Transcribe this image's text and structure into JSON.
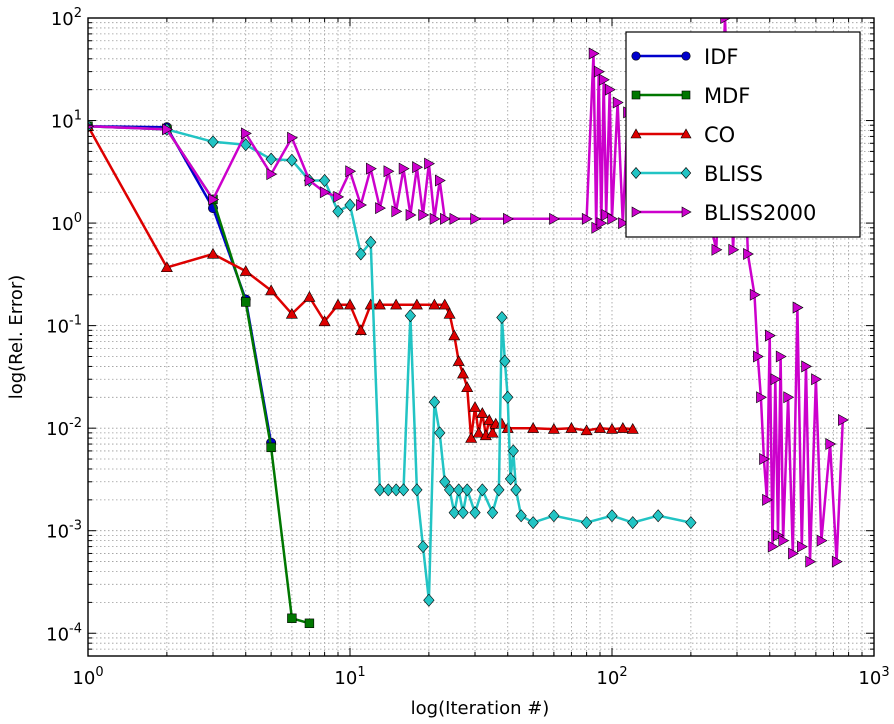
{
  "chart_data": {
    "type": "line",
    "xscale": "log",
    "yscale": "log",
    "xlim": [
      1,
      1000
    ],
    "ylim": [
      6e-05,
      100
    ],
    "xlabel": "log(Iteration #)",
    "ylabel": "log(Rel. Error)",
    "grid": true,
    "legend_position": "top-right",
    "x_ticks": [
      {
        "value": 1,
        "base": "10",
        "exp": "0"
      },
      {
        "value": 10,
        "base": "10",
        "exp": "1"
      },
      {
        "value": 100,
        "base": "10",
        "exp": "2"
      },
      {
        "value": 1000,
        "base": "10",
        "exp": "3"
      }
    ],
    "y_ticks": [
      {
        "value": 0.0001,
        "base": "10",
        "exp": "-4"
      },
      {
        "value": 0.001,
        "base": "10",
        "exp": "-3"
      },
      {
        "value": 0.01,
        "base": "10",
        "exp": "-2"
      },
      {
        "value": 0.1,
        "base": "10",
        "exp": "-1"
      },
      {
        "value": 1,
        "base": "10",
        "exp": "0"
      },
      {
        "value": 10,
        "base": "10",
        "exp": "1"
      },
      {
        "value": 100,
        "base": "10",
        "exp": "2"
      }
    ],
    "series": [
      {
        "name": "IDF",
        "color": "#0000cc",
        "marker": "circle",
        "points": [
          [
            1,
            8.8
          ],
          [
            2,
            8.6
          ],
          [
            3,
            1.4
          ],
          [
            4,
            0.18
          ],
          [
            5,
            0.0072
          ]
        ]
      },
      {
        "name": "MDF",
        "color": "#007700",
        "marker": "square",
        "points": [
          [
            1,
            8.8
          ],
          [
            2,
            8.2
          ],
          [
            3,
            1.7
          ],
          [
            4,
            0.17
          ],
          [
            5,
            0.0065
          ],
          [
            6,
            0.00014
          ],
          [
            7,
            0.000125
          ]
        ]
      },
      {
        "name": "CO",
        "color": "#dd0000",
        "marker": "triangle-up",
        "points": [
          [
            1,
            8.8
          ],
          [
            2,
            0.37
          ],
          [
            3,
            0.5
          ],
          [
            4,
            0.34
          ],
          [
            5,
            0.22
          ],
          [
            6,
            0.13
          ],
          [
            7,
            0.19
          ],
          [
            8,
            0.11
          ],
          [
            9,
            0.16
          ],
          [
            10,
            0.16
          ],
          [
            11,
            0.09
          ],
          [
            12,
            0.16
          ],
          [
            13,
            0.16
          ],
          [
            15,
            0.16
          ],
          [
            18,
            0.16
          ],
          [
            21,
            0.16
          ],
          [
            23,
            0.16
          ],
          [
            24,
            0.13
          ],
          [
            25,
            0.08
          ],
          [
            26,
            0.045
          ],
          [
            27,
            0.034
          ],
          [
            28,
            0.025
          ],
          [
            29,
            0.008
          ],
          [
            30,
            0.016
          ],
          [
            31,
            0.009
          ],
          [
            32,
            0.014
          ],
          [
            33,
            0.0085
          ],
          [
            34,
            0.012
          ],
          [
            35,
            0.009
          ],
          [
            36,
            0.011
          ],
          [
            38,
            0.011
          ],
          [
            40,
            0.01
          ],
          [
            50,
            0.01
          ],
          [
            60,
            0.0098
          ],
          [
            70,
            0.01
          ],
          [
            80,
            0.0095
          ],
          [
            90,
            0.01
          ],
          [
            100,
            0.0098
          ],
          [
            110,
            0.01
          ],
          [
            120,
            0.0098
          ]
        ]
      },
      {
        "name": "BLISS",
        "color": "#22c4c4",
        "marker": "diamond",
        "points": [
          [
            1,
            8.8
          ],
          [
            2,
            8.2
          ],
          [
            3,
            6.2
          ],
          [
            4,
            5.8
          ],
          [
            5,
            4.2
          ],
          [
            6,
            4.1
          ],
          [
            7,
            2.6
          ],
          [
            8,
            2.6
          ],
          [
            9,
            1.3
          ],
          [
            10,
            1.5
          ],
          [
            11,
            0.5
          ],
          [
            12,
            0.65
          ],
          [
            13,
            0.0025
          ],
          [
            14,
            0.0025
          ],
          [
            15,
            0.0025
          ],
          [
            16,
            0.0025
          ],
          [
            17,
            0.125
          ],
          [
            18,
            0.0025
          ],
          [
            19,
            0.0007
          ],
          [
            20,
            0.00021
          ],
          [
            21,
            0.018
          ],
          [
            22,
            0.009
          ],
          [
            23,
            0.003
          ],
          [
            24,
            0.0025
          ],
          [
            25,
            0.0015
          ],
          [
            26,
            0.0025
          ],
          [
            27,
            0.0015
          ],
          [
            28,
            0.0025
          ],
          [
            30,
            0.0015
          ],
          [
            32,
            0.0025
          ],
          [
            35,
            0.0015
          ],
          [
            37,
            0.0025
          ],
          [
            38,
            0.12
          ],
          [
            39,
            0.045
          ],
          [
            40,
            0.02
          ],
          [
            41,
            0.0032
          ],
          [
            42,
            0.006
          ],
          [
            43,
            0.0025
          ],
          [
            45,
            0.0014
          ],
          [
            50,
            0.0012
          ],
          [
            60,
            0.0014
          ],
          [
            80,
            0.0012
          ],
          [
            100,
            0.0014
          ],
          [
            120,
            0.0012
          ],
          [
            150,
            0.0014
          ],
          [
            200,
            0.0012
          ]
        ]
      },
      {
        "name": "BLISS2000",
        "color": "#cc00cc",
        "marker": "triangle-right",
        "points": [
          [
            1,
            8.8
          ],
          [
            2,
            8.2
          ],
          [
            3,
            1.7
          ],
          [
            4,
            7.5
          ],
          [
            5,
            3
          ],
          [
            6,
            6.8
          ],
          [
            7,
            2.6
          ],
          [
            8,
            2
          ],
          [
            9,
            1.8
          ],
          [
            10,
            3.2
          ],
          [
            11,
            1.5
          ],
          [
            12,
            3.4
          ],
          [
            13,
            1.4
          ],
          [
            14,
            3.2
          ],
          [
            15,
            1.3
          ],
          [
            16,
            3.4
          ],
          [
            17,
            1.2
          ],
          [
            18,
            3.5
          ],
          [
            19,
            1.2
          ],
          [
            20,
            3.8
          ],
          [
            21,
            1.1
          ],
          [
            22,
            2.6
          ],
          [
            23,
            1.1
          ],
          [
            25,
            1.1
          ],
          [
            30,
            1.1
          ],
          [
            40,
            1.1
          ],
          [
            60,
            1.1
          ],
          [
            80,
            1.1
          ],
          [
            85,
            45
          ],
          [
            87,
            0.9
          ],
          [
            89,
            30
          ],
          [
            91,
            1
          ],
          [
            93,
            25
          ],
          [
            95,
            1.2
          ],
          [
            98,
            20
          ],
          [
            100,
            1.1
          ],
          [
            105,
            15
          ],
          [
            110,
            1
          ],
          [
            115,
            12
          ],
          [
            120,
            1.1
          ],
          [
            130,
            10
          ],
          [
            140,
            1.2
          ],
          [
            150,
            9
          ],
          [
            160,
            1.1
          ],
          [
            170,
            8
          ],
          [
            180,
            1.1
          ],
          [
            200,
            2
          ],
          [
            230,
            1.4
          ],
          [
            250,
            0.55
          ],
          [
            270,
            100
          ],
          [
            290,
            0.55
          ],
          [
            310,
            40
          ],
          [
            330,
            0.5
          ],
          [
            350,
            0.2
          ],
          [
            360,
            0.05
          ],
          [
            370,
            0.02
          ],
          [
            380,
            0.005
          ],
          [
            390,
            0.002
          ],
          [
            400,
            0.08
          ],
          [
            410,
            0.0007
          ],
          [
            420,
            0.03
          ],
          [
            430,
            0.0009
          ],
          [
            440,
            0.05
          ],
          [
            450,
            0.0008
          ],
          [
            470,
            0.02
          ],
          [
            490,
            0.0006
          ],
          [
            510,
            0.15
          ],
          [
            530,
            0.0007
          ],
          [
            550,
            0.04
          ],
          [
            570,
            0.0005
          ],
          [
            600,
            0.03
          ],
          [
            630,
            0.0008
          ],
          [
            680,
            0.007
          ],
          [
            720,
            0.0005
          ],
          [
            760,
            0.012
          ]
        ]
      }
    ]
  }
}
